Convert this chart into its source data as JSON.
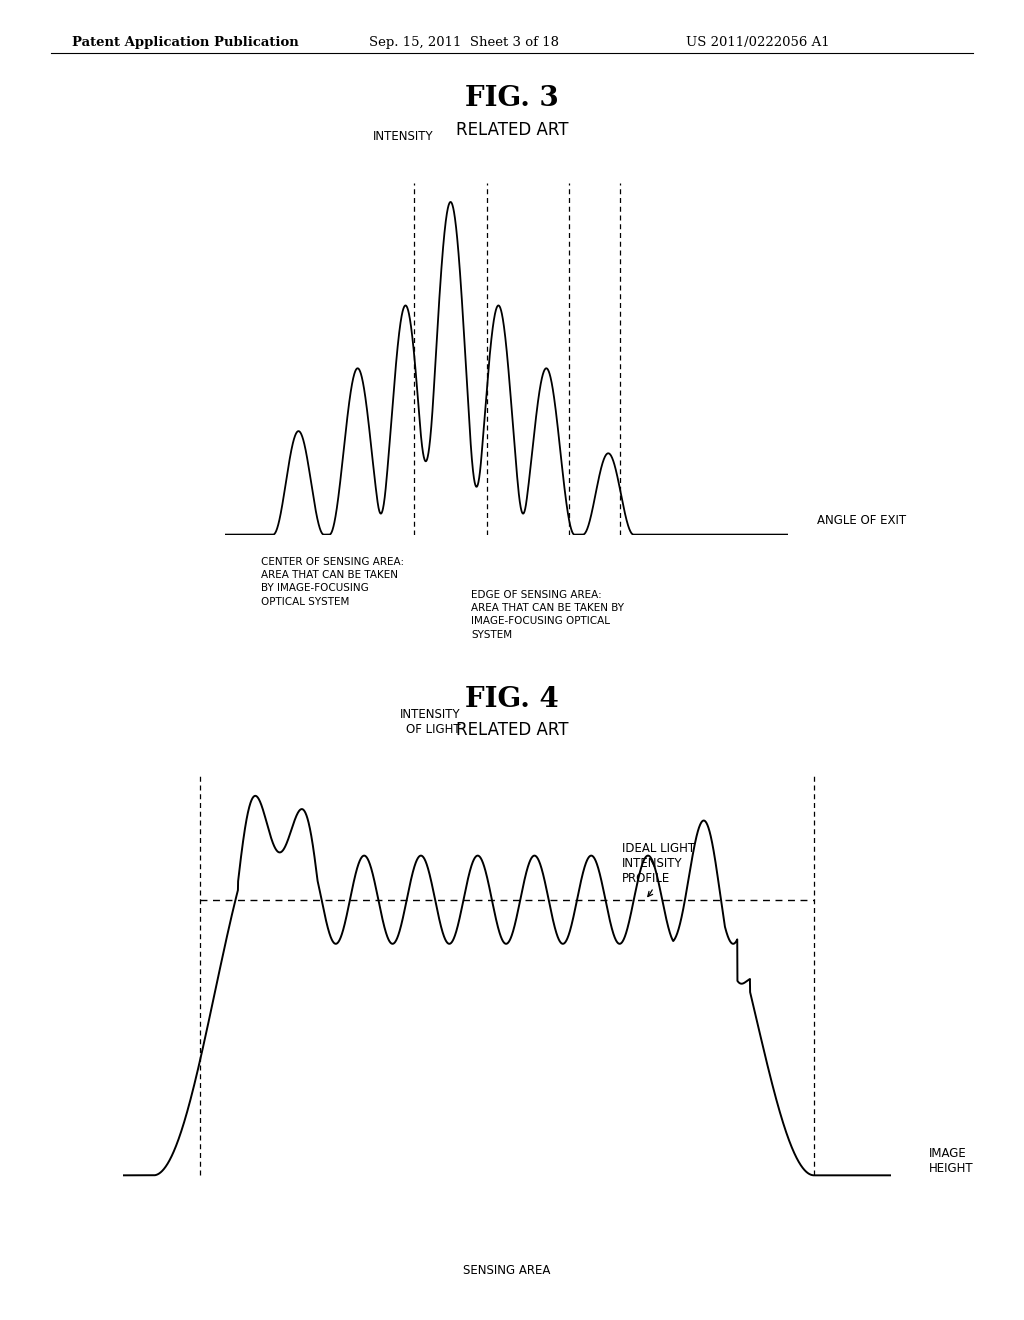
{
  "fig3_title": "FIG. 3",
  "fig3_subtitle": "RELATED ART",
  "fig4_title": "FIG. 4",
  "fig4_subtitle": "RELATED ART",
  "header_left": "Patent Application Publication",
  "header_mid": "Sep. 15, 2011  Sheet 3 of 18",
  "header_right": "US 2011/0222056 A1",
  "background_color": "#ffffff",
  "line_color": "#000000",
  "fig3_ylabel": "INTENSITY",
  "fig3_xlabel": "ANGLE OF EXIT",
  "fig3_label1": "CENTER OF SENSING AREA:\nAREA THAT CAN BE TAKEN\nBY IMAGE-FOCUSING\nOPTICAL SYSTEM",
  "fig3_label2": "EDGE OF SENSING AREA:\nAREA THAT CAN BE TAKEN BY\nIMAGE-FOCUSING OPTICAL\nSYSTEM",
  "fig4_ylabel": "INTENSITY\nOF LIGHT",
  "fig4_xlabel": "IMAGE\nHEIGHT",
  "fig4_label1": "IDEAL LIGHT\nINTENSITY\nPROFILE",
  "fig4_label2": "SENSING AREA"
}
